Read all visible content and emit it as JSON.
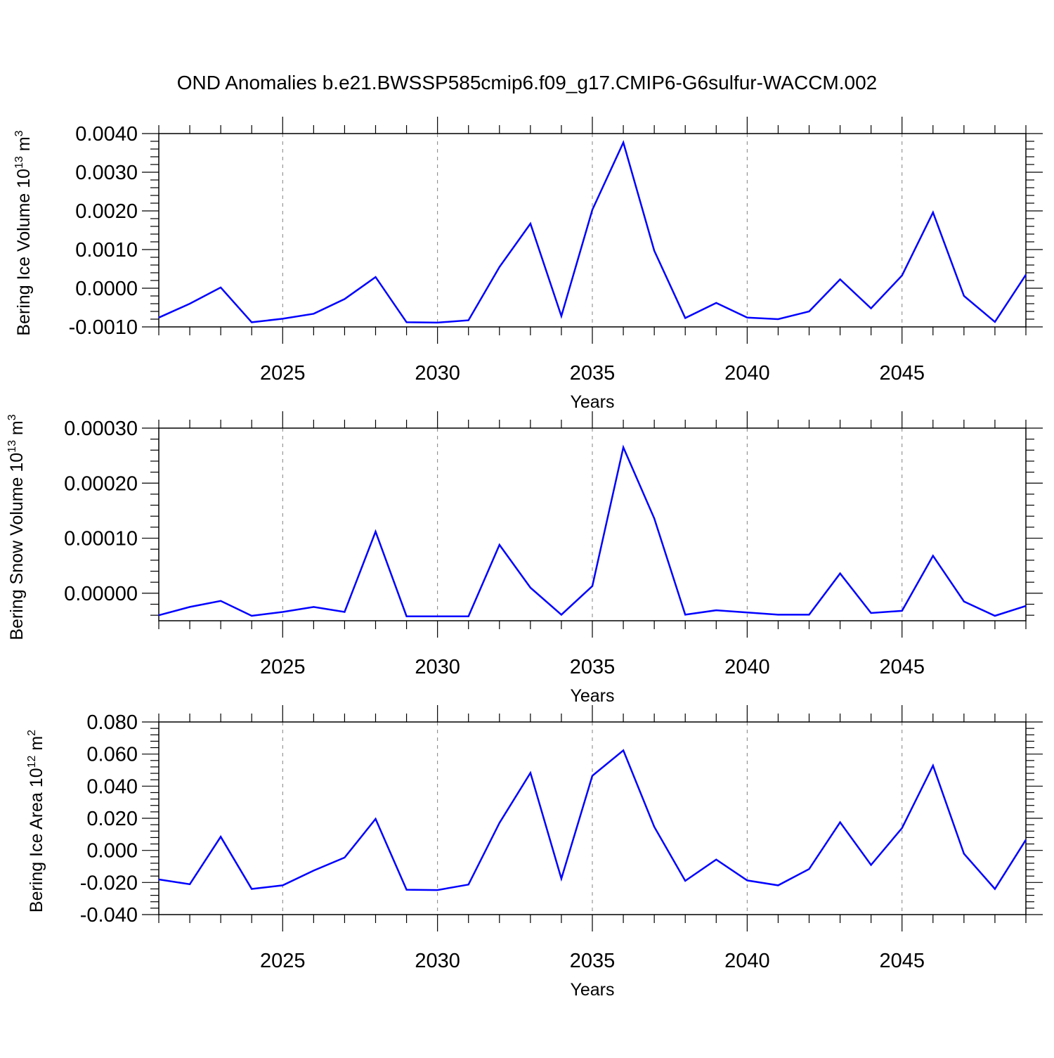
{
  "title": "OND Anomalies b.e21.BWSSP585cmip6.f09_g17.CMIP6-G6sulfur-WACCM.002",
  "colors": {
    "line": "#0000ff",
    "axis": "#000000",
    "grid": "#808080"
  },
  "chart_data": [
    {
      "type": "line",
      "name": "ice-volume",
      "ylabel": {
        "main": "Bering Ice Volume 10",
        "sup": "13",
        "tail": " m",
        "unit_sup": "3"
      },
      "xlabel": "Years",
      "xlim": [
        2021,
        2049
      ],
      "ylim": [
        -0.001,
        0.004
      ],
      "yticks": [
        -0.001,
        0.0,
        0.001,
        0.002,
        0.003,
        0.004
      ],
      "ytick_labels": [
        "-0.0010",
        "0.0000",
        "0.0010",
        "0.0020",
        "0.0030",
        "0.0040"
      ],
      "xticks": [
        2025,
        2030,
        2035,
        2040,
        2045
      ],
      "xtick_labels": [
        "2025",
        "2030",
        "2035",
        "2040",
        "2045"
      ],
      "grid": "vertical dashed at major x ticks",
      "x": [
        2021,
        2022,
        2023,
        2024,
        2025,
        2026,
        2027,
        2028,
        2029,
        2030,
        2031,
        2032,
        2033,
        2034,
        2035,
        2036,
        2037,
        2038,
        2039,
        2040,
        2041,
        2042,
        2043,
        2044,
        2045,
        2046,
        2047,
        2048,
        2049
      ],
      "values": [
        -0.00076,
        -0.0004,
        2e-05,
        -0.00088,
        -0.00079,
        -0.00066,
        -0.00028,
        0.00029,
        -0.00088,
        -0.00089,
        -0.00083,
        0.00055,
        0.00167,
        -0.00072,
        0.00203,
        0.00377,
        0.00097,
        -0.00077,
        -0.00038,
        -0.00076,
        -0.0008,
        -0.0006,
        0.00023,
        -0.00052,
        0.00033,
        0.00196,
        -0.0002,
        -0.00087,
        0.00035
      ]
    },
    {
      "type": "line",
      "name": "snow-volume",
      "ylabel": {
        "main": "Bering Snow Volume 10",
        "sup": "13",
        "tail": " m",
        "unit_sup": "3"
      },
      "xlabel": "Years",
      "xlim": [
        2021,
        2049
      ],
      "ylim": [
        -5e-05,
        0.0003
      ],
      "yticks": [
        0.0,
        0.0001,
        0.0002,
        0.0003
      ],
      "ytick_labels": [
        "0.00000",
        "0.00010",
        "0.00020",
        "0.00030"
      ],
      "xticks": [
        2025,
        2030,
        2035,
        2040,
        2045
      ],
      "xtick_labels": [
        "2025",
        "2030",
        "2035",
        "2040",
        "2045"
      ],
      "grid": "vertical dashed at major x ticks",
      "x": [
        2021,
        2022,
        2023,
        2024,
        2025,
        2026,
        2027,
        2028,
        2029,
        2030,
        2031,
        2032,
        2033,
        2034,
        2035,
        2036,
        2037,
        2038,
        2039,
        2040,
        2041,
        2042,
        2043,
        2044,
        2045,
        2046,
        2047,
        2048,
        2049
      ],
      "values": [
        -4e-05,
        -2.5e-05,
        -1.4e-05,
        -4.1e-05,
        -3.4e-05,
        -2.5e-05,
        -3.4e-05,
        0.000112,
        -4.2e-05,
        -4.2e-05,
        -4.2e-05,
        8.8e-05,
        1e-05,
        -3.9e-05,
        1.3e-05,
        0.000265,
        0.000136,
        -3.9e-05,
        -3.1e-05,
        -3.5e-05,
        -3.9e-05,
        -3.9e-05,
        3.6e-05,
        -3.6e-05,
        -3.2e-05,
        6.8e-05,
        -1.5e-05,
        -4.1e-05,
        -2.3e-05
      ]
    },
    {
      "type": "line",
      "name": "ice-area",
      "ylabel": {
        "main": "Bering Ice Area 10",
        "sup": "12",
        "tail": " m",
        "unit_sup": "2"
      },
      "xlabel": "Years",
      "xlim": [
        2021,
        2049
      ],
      "ylim": [
        -0.04,
        0.08
      ],
      "yticks": [
        -0.04,
        -0.02,
        0.0,
        0.02,
        0.04,
        0.06,
        0.08
      ],
      "ytick_labels": [
        "-0.040",
        "-0.020",
        "0.000",
        "0.020",
        "0.040",
        "0.060",
        "0.080"
      ],
      "xticks": [
        2025,
        2030,
        2035,
        2040,
        2045
      ],
      "xtick_labels": [
        "2025",
        "2030",
        "2035",
        "2040",
        "2045"
      ],
      "grid": "vertical dashed at major x ticks",
      "x": [
        2021,
        2022,
        2023,
        2024,
        2025,
        2026,
        2027,
        2028,
        2029,
        2030,
        2031,
        2032,
        2033,
        2034,
        2035,
        2036,
        2037,
        2038,
        2039,
        2040,
        2041,
        2042,
        2043,
        2044,
        2045,
        2046,
        2047,
        2048,
        2049
      ],
      "values": [
        -0.0181,
        -0.0211,
        0.0085,
        -0.024,
        -0.0218,
        -0.0126,
        -0.0045,
        0.0196,
        -0.0245,
        -0.0247,
        -0.0213,
        0.0171,
        0.0483,
        -0.0176,
        0.0465,
        0.0623,
        0.0147,
        -0.019,
        -0.0057,
        -0.0187,
        -0.0218,
        -0.0116,
        0.0175,
        -0.0091,
        0.0139,
        0.0528,
        -0.0021,
        -0.024,
        0.0066
      ]
    }
  ]
}
